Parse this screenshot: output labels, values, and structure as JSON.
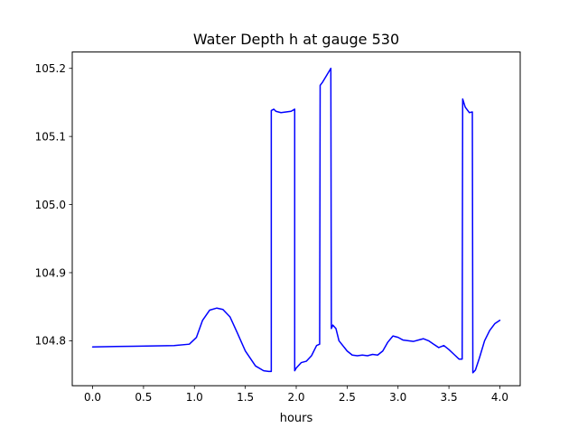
{
  "chart_data": {
    "type": "line",
    "title": "Water Depth h at gauge 530",
    "xlabel": "hours",
    "ylabel": "",
    "xlim": [
      -0.2,
      4.2
    ],
    "ylim": [
      104.734,
      105.224
    ],
    "xticks": [
      0.0,
      0.5,
      1.0,
      1.5,
      2.0,
      2.5,
      3.0,
      3.5,
      4.0
    ],
    "xtick_labels": [
      "0.0",
      "0.5",
      "1.0",
      "1.5",
      "2.0",
      "2.5",
      "3.0",
      "3.5",
      "4.0"
    ],
    "yticks": [
      104.8,
      104.9,
      105.0,
      105.1,
      105.2
    ],
    "ytick_labels": [
      "104.8",
      "104.9",
      "105.0",
      "105.1",
      "105.2"
    ],
    "grid": false,
    "series": [
      {
        "color": "#0000ff",
        "x": [
          0.0,
          0.4,
          0.8,
          0.95,
          1.02,
          1.08,
          1.15,
          1.22,
          1.28,
          1.35,
          1.42,
          1.5,
          1.6,
          1.68,
          1.73,
          1.755,
          1.755,
          1.78,
          1.8,
          1.85,
          1.9,
          1.95,
          1.985,
          1.985,
          2.0,
          2.05,
          2.1,
          2.15,
          2.2,
          2.23,
          2.235,
          2.26,
          2.3,
          2.34,
          2.345,
          2.36,
          2.39,
          2.42,
          2.5,
          2.55,
          2.6,
          2.65,
          2.7,
          2.75,
          2.8,
          2.85,
          2.9,
          2.95,
          3.0,
          3.05,
          3.1,
          3.15,
          3.2,
          3.25,
          3.3,
          3.35,
          3.4,
          3.45,
          3.5,
          3.55,
          3.6,
          3.63,
          3.635,
          3.66,
          3.7,
          3.73,
          3.735,
          3.76,
          3.8,
          3.85,
          3.9,
          3.95,
          4.0
        ],
        "values": [
          104.791,
          104.792,
          104.793,
          104.795,
          104.805,
          104.83,
          104.845,
          104.848,
          104.846,
          104.835,
          104.812,
          104.785,
          104.763,
          104.756,
          104.755,
          104.755,
          105.138,
          105.14,
          105.137,
          105.135,
          105.136,
          105.137,
          105.14,
          104.756,
          104.76,
          104.768,
          104.77,
          104.778,
          104.793,
          104.795,
          105.175,
          105.18,
          105.19,
          105.2,
          104.818,
          104.823,
          104.818,
          104.8,
          104.785,
          104.779,
          104.778,
          104.779,
          104.778,
          104.78,
          104.779,
          104.785,
          104.798,
          104.807,
          104.805,
          104.801,
          104.8,
          104.799,
          104.801,
          104.803,
          104.8,
          104.795,
          104.79,
          104.793,
          104.787,
          104.78,
          104.773,
          104.773,
          105.155,
          105.143,
          105.135,
          105.136,
          104.753,
          104.757,
          104.775,
          104.8,
          104.815,
          104.825,
          104.83
        ]
      }
    ]
  }
}
